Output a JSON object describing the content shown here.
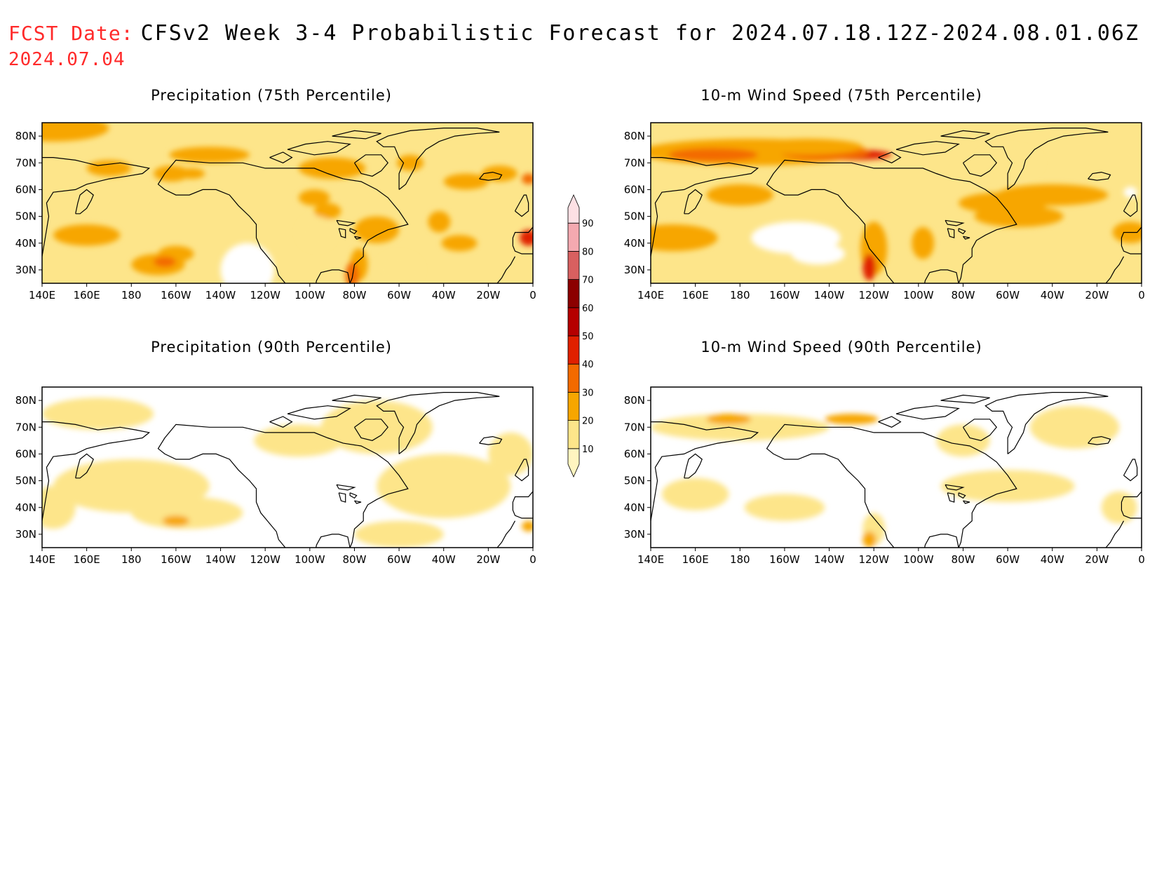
{
  "header": {
    "fcst_label": "FCST Date:",
    "fcst_date": "2024.07.04",
    "title": "CFSv2 Week 3-4 Probabilistic Forecast for 2024.07.18.12Z-2024.08.01.06Z"
  },
  "panels": [
    {
      "title": "Precipitation (75th Percentile)",
      "variable": "precipitation",
      "percentile": 75
    },
    {
      "title": "10-m Wind Speed (75th Percentile)",
      "variable": "wind",
      "percentile": 75
    },
    {
      "title": "Precipitation (90th Percentile)",
      "variable": "precipitation",
      "percentile": 90
    },
    {
      "title": "10-m Wind Speed (90th Percentile)",
      "variable": "wind",
      "percentile": 90
    }
  ],
  "axes": {
    "lon_labels": [
      "140E",
      "160E",
      "180",
      "160W",
      "140W",
      "120W",
      "100W",
      "80W",
      "60W",
      "40W",
      "20W",
      "0"
    ],
    "lat_labels": [
      "80N",
      "70N",
      "60N",
      "50N",
      "40N",
      "30N"
    ],
    "lon_range": [
      140,
      360
    ],
    "lat_range": [
      25,
      85
    ]
  },
  "colorbar": {
    "levels": [
      "10",
      "20",
      "30",
      "40",
      "50",
      "60",
      "70",
      "80",
      "90"
    ],
    "colors": [
      "#fff5c0",
      "#fde58a",
      "#f7a600",
      "#f36a00",
      "#e02000",
      "#b50000",
      "#8c0000",
      "#d86060",
      "#f4a9b0",
      "#fde0e4"
    ]
  }
}
